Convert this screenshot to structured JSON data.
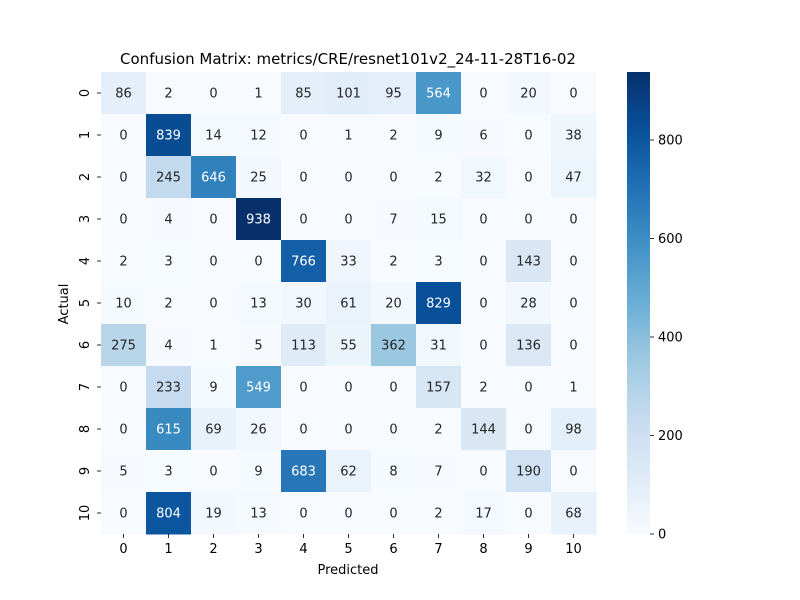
{
  "chart_data": {
    "type": "heatmap",
    "title": "Confusion Matrix: metrics/CRE/resnet101v2_24-11-28T16-02",
    "xlabel": "Predicted",
    "ylabel": "Actual",
    "x_categories": [
      "0",
      "1",
      "2",
      "3",
      "4",
      "5",
      "6",
      "7",
      "8",
      "9",
      "10"
    ],
    "y_categories": [
      "0",
      "1",
      "2",
      "3",
      "4",
      "5",
      "6",
      "7",
      "8",
      "9",
      "10"
    ],
    "matrix": [
      [
        86,
        2,
        0,
        1,
        85,
        101,
        95,
        564,
        0,
        20,
        0
      ],
      [
        0,
        839,
        14,
        12,
        0,
        1,
        2,
        9,
        6,
        0,
        38
      ],
      [
        0,
        245,
        646,
        25,
        0,
        0,
        0,
        2,
        32,
        0,
        47
      ],
      [
        0,
        4,
        0,
        938,
        0,
        0,
        7,
        15,
        0,
        0,
        0
      ],
      [
        2,
        3,
        0,
        0,
        766,
        33,
        2,
        3,
        0,
        143,
        0
      ],
      [
        10,
        2,
        0,
        13,
        30,
        61,
        20,
        829,
        0,
        28,
        0
      ],
      [
        275,
        4,
        1,
        5,
        113,
        55,
        362,
        31,
        0,
        136,
        0
      ],
      [
        0,
        233,
        9,
        549,
        0,
        0,
        0,
        157,
        2,
        0,
        1
      ],
      [
        0,
        615,
        69,
        26,
        0,
        0,
        0,
        2,
        144,
        0,
        98
      ],
      [
        5,
        3,
        0,
        9,
        683,
        62,
        8,
        7,
        0,
        190,
        0
      ],
      [
        0,
        804,
        19,
        13,
        0,
        0,
        0,
        2,
        17,
        0,
        68
      ]
    ],
    "colormap": "Blues",
    "vmin": 0,
    "vmax": 938,
    "colorbar_ticks": [
      0,
      200,
      400,
      600,
      800
    ],
    "legend": "colorbar-right"
  }
}
